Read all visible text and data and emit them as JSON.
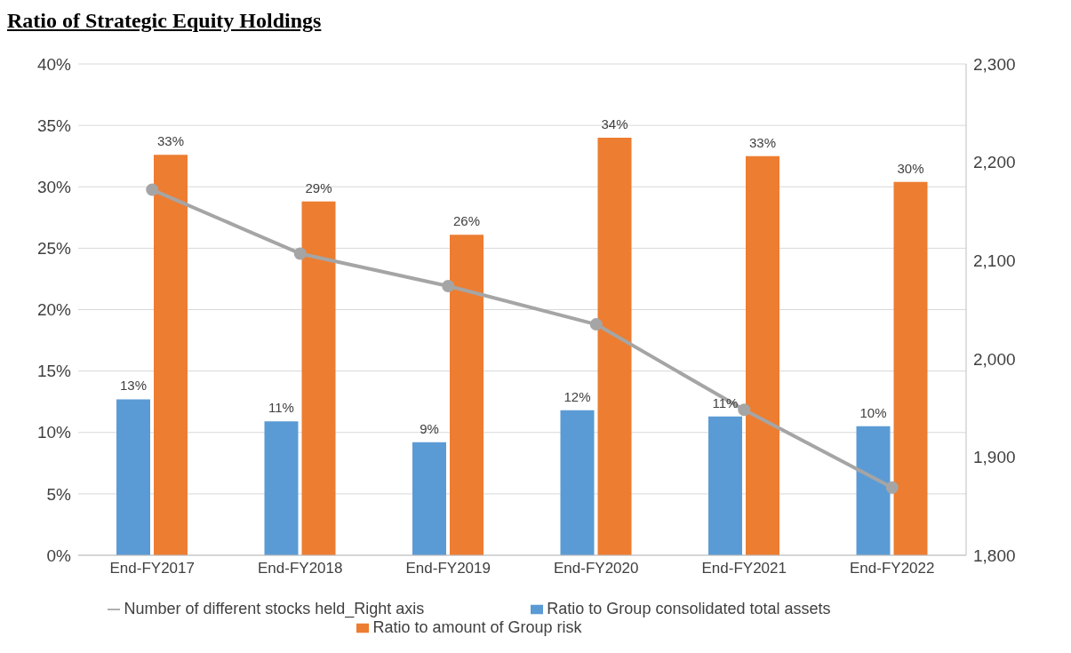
{
  "chart_data": {
    "type": "bar",
    "title": "Ratio of Strategic Equity Holdings",
    "categories": [
      "End-FY2017",
      "End-FY2018",
      "End-FY2019",
      "End-FY2020",
      "End-FY2021",
      "End-FY2022"
    ],
    "series": [
      {
        "name": "Ratio to Group consolidated total assets",
        "color": "#5b9bd5",
        "values": [
          12.7,
          10.9,
          9.2,
          11.8,
          11.3,
          10.5
        ],
        "value_labels": [
          "13%",
          "11%",
          "9%",
          "12%",
          "11%",
          "10%"
        ]
      },
      {
        "name": "Ratio to amount of Group risk",
        "color": "#ed7d31",
        "values": [
          32.6,
          28.8,
          26.1,
          34.0,
          32.5,
          30.4
        ],
        "value_labels": [
          "33%",
          "29%",
          "26%",
          "34%",
          "33%",
          "30%"
        ]
      },
      {
        "name": "Number of different stocks held_Right axis",
        "type": "line",
        "axis": "y2",
        "color": "#a5a5a5",
        "marker": "circle",
        "values": [
          2172,
          2107,
          2074,
          2035,
          1948,
          1869
        ]
      }
    ],
    "ylim": [
      0,
      40
    ],
    "yticks": [
      {
        "value": 0,
        "label": "0%"
      },
      {
        "value": 5,
        "label": "5%"
      },
      {
        "value": 10,
        "label": "10%"
      },
      {
        "value": 15,
        "label": "15%"
      },
      {
        "value": 20,
        "label": "20%"
      },
      {
        "value": 25,
        "label": "25%"
      },
      {
        "value": 30,
        "label": "30%"
      },
      {
        "value": 35,
        "label": "35%"
      },
      {
        "value": 40,
        "label": "40%"
      }
    ],
    "y2lim": [
      1800,
      2300
    ],
    "y2ticks": [
      {
        "value": 1800,
        "label": "1,800"
      },
      {
        "value": 1900,
        "label": "1,900"
      },
      {
        "value": 2000,
        "label": "2,000"
      },
      {
        "value": 2100,
        "label": "2,100"
      },
      {
        "value": 2200,
        "label": "2,200"
      },
      {
        "value": 2300,
        "label": "2,300"
      }
    ],
    "grid": "y",
    "legend": "bottom"
  }
}
